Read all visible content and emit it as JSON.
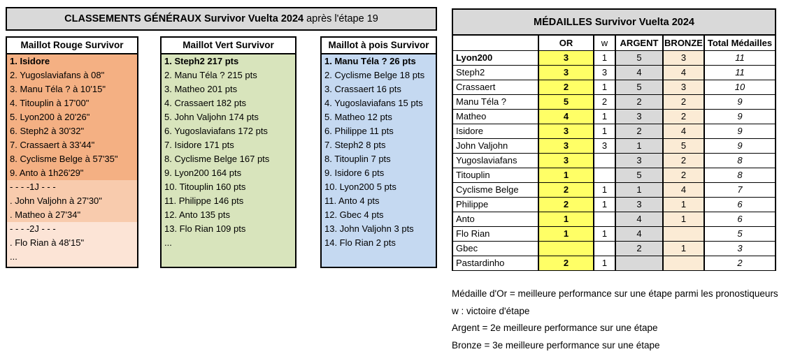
{
  "classements": {
    "title_bold": "CLASSEMENTS GÉNÉRAUX Survivor Vuelta 2024",
    "title_suffix": " après l'étape 19",
    "columns": [
      {
        "header": "Maillot Rouge Survivor",
        "sections": [
          {
            "shade": "bg-rouge1",
            "rows": [
              "1. Isidore",
              "2. Yugoslaviafans à 08\"",
              "3. Manu Téla ? à 10'15\"",
              "4. Titouplin à 17'00\"",
              "5. Lyon200 à 20'26\"",
              "6. Steph2 à 30'32\"",
              "7. Crassaert à 33'44\"",
              "8. Cyclisme Belge à 57'35\"",
              "9. Anto à 1h26'29\""
            ]
          },
          {
            "shade": "bg-rouge2",
            "rows": [
              "- - - -1J - - -",
              ". John Valjohn à 27'30\"",
              ". Matheo à 27'34\""
            ]
          },
          {
            "shade": "bg-rouge3",
            "rows": [
              "- - - -2J - - -",
              ". Flo Rian à 48'15\"",
              "..."
            ]
          }
        ]
      },
      {
        "header": "Maillot Vert Survivor",
        "sections": [
          {
            "shade": "bg-vert",
            "rows": [
              "1. Steph2 217 pts",
              "2. Manu Téla ? 215 pts",
              "3. Matheo 201 pts",
              "4. Crassaert 182 pts",
              "5. John Valjohn 174 pts",
              "6. Yugoslaviafans 172 pts",
              "7. Isidore 171 pts",
              "8. Cyclisme Belge 167 pts",
              "9. Lyon200 164 pts",
              "10. Titouplin 160 pts",
              "11. Philippe 146 pts",
              "12. Anto 135 pts",
              "13. Flo Rian 109 pts",
              "..."
            ]
          }
        ]
      },
      {
        "header": "Maillot à pois Survivor",
        "sections": [
          {
            "shade": "bg-pois",
            "rows": [
              "1. Manu Téla ? 26 pts",
              "2. Cyclisme Belge 18 pts",
              "3. Crassaert 16 pts",
              "4. Yugoslaviafans 15 pts",
              "5. Matheo 12 pts",
              "6. Philippe 11 pts",
              "7. Steph2 8 pts",
              "8. Titouplin 7 pts",
              "9. Isidore 6 pts",
              "10. Lyon200 5 pts",
              "11. Anto 4 pts",
              "12. Gbec 4 pts",
              "13. John Valjohn 3 pts",
              "14. Flo Rian 2 pts"
            ]
          }
        ]
      }
    ]
  },
  "medailles": {
    "title": "MÉDAILLES Survivor Vuelta 2024",
    "headers": [
      "",
      "OR",
      "w",
      "ARGENT",
      "BRONZE",
      "Total Médailles"
    ],
    "rows": [
      {
        "name": "Lyon200",
        "or": "3",
        "w": "1",
        "argent": "5",
        "bronze": "3",
        "total": "11"
      },
      {
        "name": "Steph2",
        "or": "3",
        "w": "3",
        "argent": "4",
        "bronze": "4",
        "total": "11"
      },
      {
        "name": "Crassaert",
        "or": "2",
        "w": "1",
        "argent": "5",
        "bronze": "3",
        "total": "10"
      },
      {
        "name": "Manu Téla ?",
        "or": "5",
        "w": "2",
        "argent": "2",
        "bronze": "2",
        "total": "9"
      },
      {
        "name": "Matheo",
        "or": "4",
        "w": "1",
        "argent": "3",
        "bronze": "2",
        "total": "9"
      },
      {
        "name": "Isidore",
        "or": "3",
        "w": "1",
        "argent": "2",
        "bronze": "4",
        "total": "9"
      },
      {
        "name": "John Valjohn",
        "or": "3",
        "w": "3",
        "argent": "1",
        "bronze": "5",
        "total": "9"
      },
      {
        "name": "Yugoslaviafans",
        "or": "3",
        "w": "",
        "argent": "3",
        "bronze": "2",
        "total": "8"
      },
      {
        "name": "Titouplin",
        "or": "1",
        "w": "",
        "argent": "5",
        "bronze": "2",
        "total": "8"
      },
      {
        "name": "Cyclisme Belge",
        "or": "2",
        "w": "1",
        "argent": "1",
        "bronze": "4",
        "total": "7"
      },
      {
        "name": "Philippe",
        "or": "2",
        "w": "1",
        "argent": "3",
        "bronze": "1",
        "total": "6"
      },
      {
        "name": "Anto",
        "or": "1",
        "w": "",
        "argent": "4",
        "bronze": "1",
        "total": "6"
      },
      {
        "name": "Flo Rian",
        "or": "1",
        "w": "1",
        "argent": "4",
        "bronze": "",
        "total": "5"
      },
      {
        "name": "Gbec",
        "or": "",
        "w": "",
        "argent": "2",
        "bronze": "1",
        "total": "3"
      },
      {
        "name": "Pastardinho",
        "or": "2",
        "w": "1",
        "argent": "",
        "bronze": "",
        "total": "2"
      }
    ]
  },
  "footnotes": [
    "Médaille d'Or = meilleure performance sur une étape parmi les pronostiqueurs",
    "w : victoire d'étape",
    "Argent = 2e meilleure performance sur une étape",
    "Bronze = 3e meilleure performance sur une étape"
  ],
  "colors": {
    "header_gray": "#D9D9D9",
    "rouge_dark": "#F4B083",
    "rouge_medium": "#F8CBAD",
    "rouge_light": "#FCE4D6",
    "vert": "#D8E4BC",
    "pois_blue": "#C5D9F1",
    "or_yellow": "#FFFF66",
    "argent_gray": "#D9D9D9",
    "bronze_tan": "#FBEBD5"
  }
}
